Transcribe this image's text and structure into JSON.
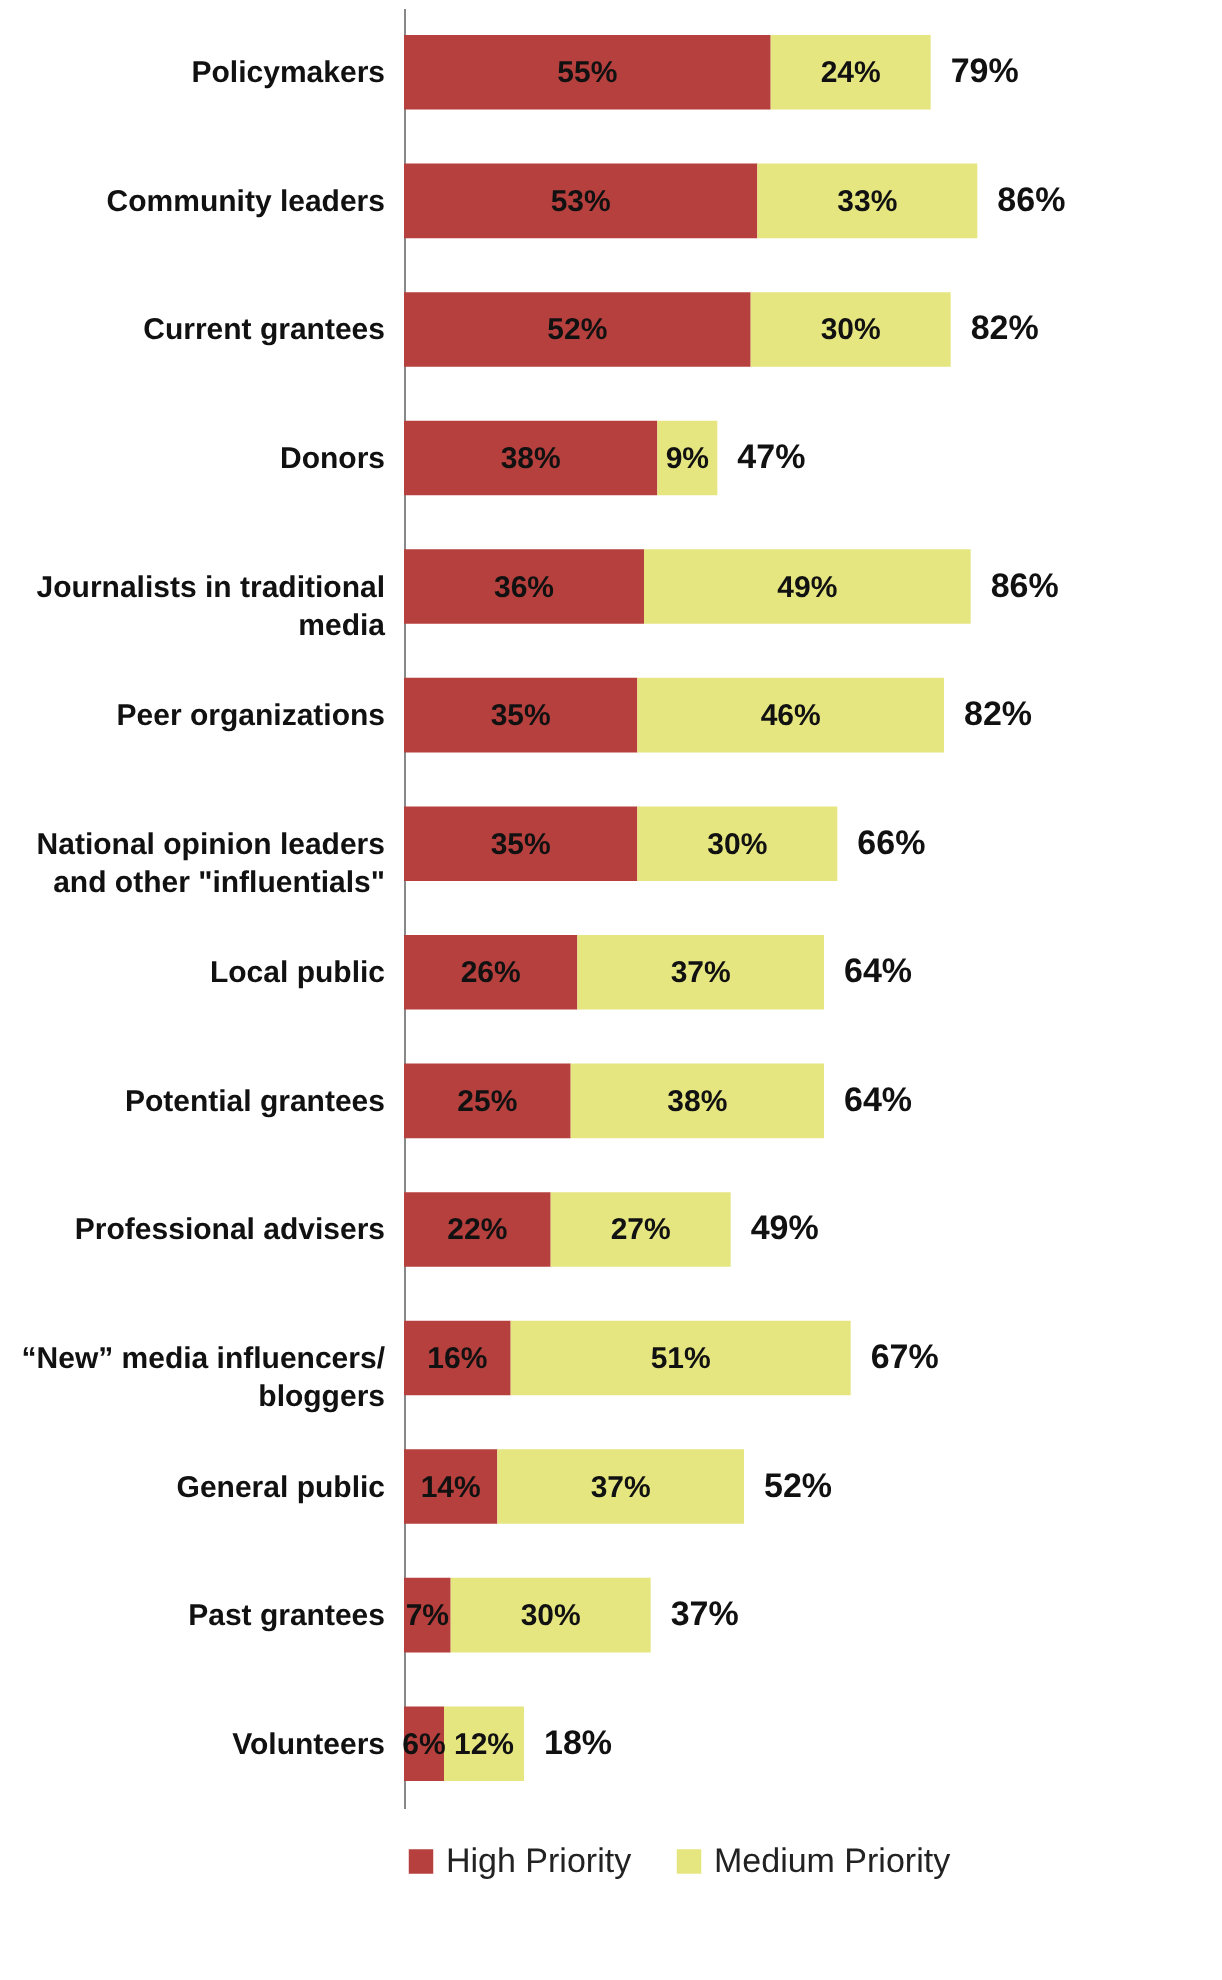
{
  "chart_data": {
    "type": "bar",
    "orientation": "horizontal",
    "stacked": true,
    "legend": "bottom",
    "categories": [
      "Policymakers",
      "Community leaders",
      "Current grantees",
      "Donors",
      "Journalists in traditional media",
      "Peer organizations",
      "National opinion leaders and other \"influentials\"",
      "Local public",
      "Potential grantees",
      "Professional advisers",
      "“New” media influencers/ bloggers",
      "General public",
      "Past grantees",
      "Volunteers"
    ],
    "series": [
      {
        "name": "High Priority",
        "color": "#b5403d",
        "values": [
          55,
          53,
          52,
          38,
          36,
          35,
          35,
          26,
          25,
          22,
          16,
          14,
          7,
          6
        ],
        "value_labels": [
          "55%",
          "53%",
          "52%",
          "38%",
          "36%",
          "35%",
          "35%",
          "26%",
          "25%",
          "22%",
          "16%",
          "14%",
          "7%",
          "6%"
        ]
      },
      {
        "name": "Medium Priority",
        "color": "#e6e680",
        "values": [
          24,
          33,
          30,
          9,
          49,
          46,
          30,
          37,
          38,
          27,
          51,
          37,
          30,
          12
        ],
        "value_labels": [
          "24%",
          "33%",
          "30%",
          "9%",
          "49%",
          "46%",
          "30%",
          "37%",
          "38%",
          "27%",
          "51%",
          "37%",
          "30%",
          "12%"
        ]
      }
    ],
    "totals": [
      "79%",
      "86%",
      "82%",
      "47%",
      "86%",
      "82%",
      "66%",
      "64%",
      "64%",
      "49%",
      "67%",
      "52%",
      "37%",
      "18%"
    ]
  }
}
